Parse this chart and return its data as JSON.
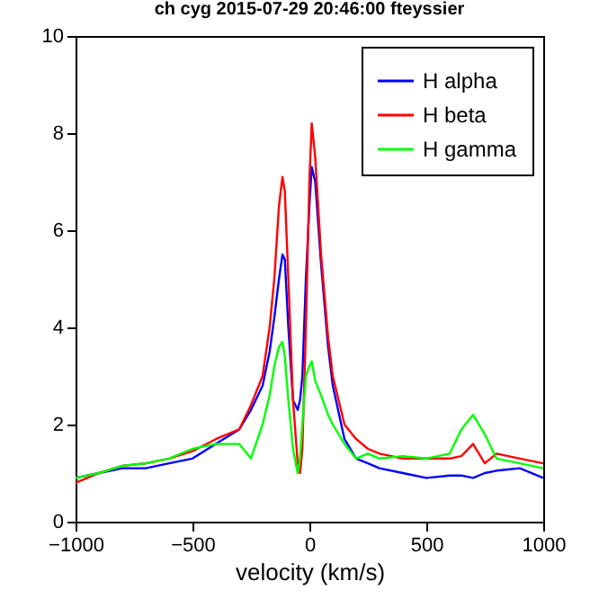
{
  "chart_data": {
    "type": "line",
    "title": "ch cyg 2015-07-29   20:46:00  fteyssier",
    "xlabel": "velocity (km/s)",
    "x": [
      -1000,
      -900,
      -800,
      -700,
      -600,
      -500,
      -400,
      -300,
      -250,
      -200,
      -170,
      -150,
      -130,
      -115,
      -105,
      -90,
      -70,
      -50,
      -40,
      -30,
      -15,
      0,
      10,
      25,
      50,
      80,
      100,
      150,
      200,
      250,
      300,
      400,
      500,
      600,
      650,
      700,
      750,
      800,
      900,
      1000
    ],
    "series": [
      {
        "name": "H alpha",
        "color": "#0000ff",
        "values": [
          0.9,
          1.0,
          1.1,
          1.1,
          1.2,
          1.3,
          1.6,
          1.9,
          2.3,
          2.8,
          3.5,
          4.2,
          5.0,
          5.5,
          5.4,
          4.0,
          2.5,
          2.3,
          2.5,
          3.0,
          5.0,
          6.5,
          7.3,
          7.0,
          5.3,
          3.6,
          2.8,
          1.7,
          1.3,
          1.2,
          1.1,
          1.0,
          0.9,
          0.95,
          0.95,
          0.9,
          1.0,
          1.05,
          1.1,
          0.9
        ]
      },
      {
        "name": "H beta",
        "color": "#ff0000",
        "values": [
          0.8,
          1.0,
          1.15,
          1.2,
          1.3,
          1.45,
          1.7,
          1.9,
          2.4,
          3.0,
          4.0,
          5.0,
          6.5,
          7.1,
          6.8,
          5.0,
          2.5,
          1.2,
          1.0,
          1.5,
          4.0,
          7.0,
          8.2,
          7.5,
          5.5,
          3.8,
          3.0,
          2.0,
          1.7,
          1.5,
          1.4,
          1.3,
          1.3,
          1.3,
          1.35,
          1.6,
          1.2,
          1.4,
          1.3,
          1.2
        ]
      },
      {
        "name": "H gamma",
        "color": "#00ff00",
        "values": [
          0.9,
          1.0,
          1.15,
          1.2,
          1.3,
          1.5,
          1.6,
          1.6,
          1.3,
          2.0,
          2.6,
          3.2,
          3.6,
          3.7,
          3.4,
          2.5,
          1.5,
          1.0,
          1.3,
          2.0,
          3.0,
          3.2,
          3.3,
          2.9,
          2.6,
          2.2,
          2.0,
          1.6,
          1.3,
          1.4,
          1.3,
          1.35,
          1.3,
          1.4,
          1.9,
          2.2,
          1.8,
          1.3,
          1.2,
          1.1
        ]
      }
    ],
    "xlim": [
      -1000,
      1000
    ],
    "xticks": [
      -1000,
      -500,
      0,
      500,
      1000
    ],
    "ylim": [
      0,
      10
    ],
    "yticks": [
      0,
      2,
      4,
      6,
      8,
      10
    ],
    "grid": false,
    "legend": "top right",
    "marker": "none",
    "line_style": "solid"
  }
}
